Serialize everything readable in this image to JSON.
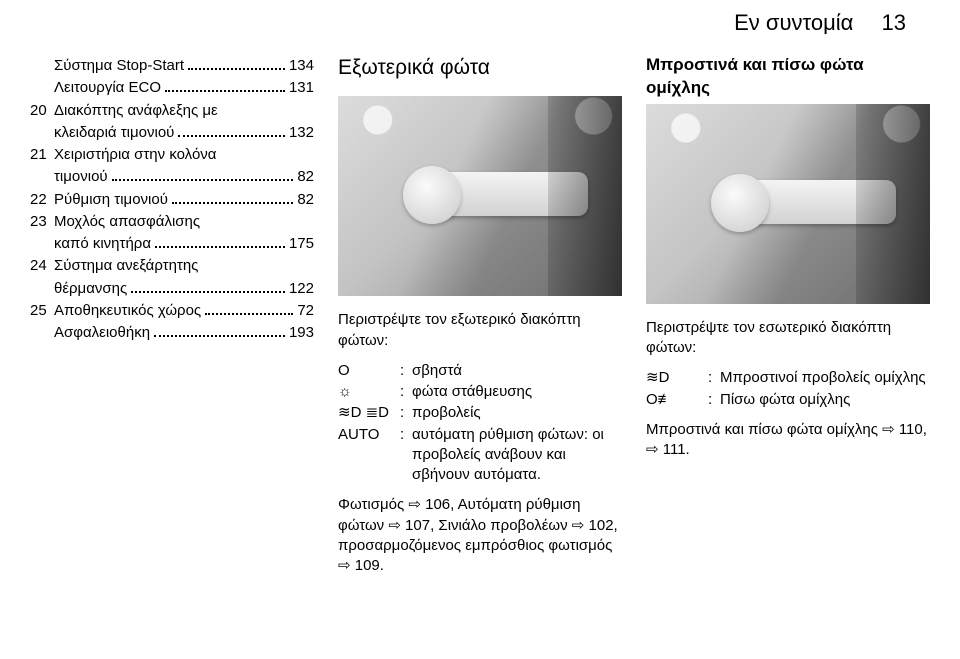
{
  "header": {
    "section": "Εν συντομία",
    "page": "13"
  },
  "col1": {
    "items": [
      {
        "num": "",
        "text": "Σύστημα Stop-Start",
        "page": "134",
        "cont_lines": []
      },
      {
        "num": "",
        "text": "Λειτουργία ECO",
        "page": "131",
        "cont_lines": []
      },
      {
        "num": "20",
        "text": "Διακόπτης ανάφλεξης με",
        "page": "",
        "cont_lines": [
          {
            "text": "κλειδαριά τιμονιού",
            "page": "132"
          }
        ]
      },
      {
        "num": "21",
        "text": "Χειριστήρια στην κολόνα",
        "page": "",
        "cont_lines": [
          {
            "text": "τιμονιού",
            "page": "82"
          }
        ]
      },
      {
        "num": "22",
        "text": "Ρύθμιση τιμονιού",
        "page": "82",
        "cont_lines": []
      },
      {
        "num": "23",
        "text": "Μοχλός απασφάλισης",
        "page": "",
        "cont_lines": [
          {
            "text": "καπό κινητήρα",
            "page": "175"
          }
        ]
      },
      {
        "num": "24",
        "text": "Σύστημα ανεξάρτητης",
        "page": "",
        "cont_lines": [
          {
            "text": "θέρμανσης",
            "page": "122"
          }
        ]
      },
      {
        "num": "25",
        "text": "Αποθηκευτικός χώρος",
        "page": "72",
        "cont_lines": []
      },
      {
        "num": "",
        "text": "Ασφαλειοθήκη",
        "page": "193",
        "cont_lines": []
      }
    ]
  },
  "col2": {
    "heading": "Εξωτερικά φώτα",
    "intro": "Περιστρέψτε τον εξωτερικό διακόπτη φώτων:",
    "defs": [
      {
        "sym": "O",
        "val": "σβηστά"
      },
      {
        "sym": "☼",
        "val": "φώτα στάθμευσης"
      },
      {
        "sym": "≋D ≣D",
        "val": "προβολείς"
      },
      {
        "sym": "AUTO",
        "val": "αυτόματη ρύθμιση φώτων: οι προβολείς ανάβουν και σβήνουν αυτόματα."
      }
    ],
    "footer": "Φωτισμός ⇨ 106, Αυτόματη ρύθμιση φώτων ⇨ 107, Σινιάλο προβολέων ⇨ 102, προσαρμοζόμενος εμπρόσθιος φωτισμός ⇨ 109."
  },
  "col3": {
    "heading": "Μπροστινά και πίσω φώτα ομίχλης",
    "intro": "Περιστρέψτε τον εσωτερικό διακόπτη φώτων:",
    "defs": [
      {
        "sym": "≋D",
        "val": "Μπροστινοί προβολείς ομίχλης"
      },
      {
        "sym": "O≢",
        "val": "Πίσω φώτα ομίχλης"
      }
    ],
    "footer": "Μπροστινά και πίσω φώτα ομίχλης ⇨ 110, ⇨ 111."
  }
}
